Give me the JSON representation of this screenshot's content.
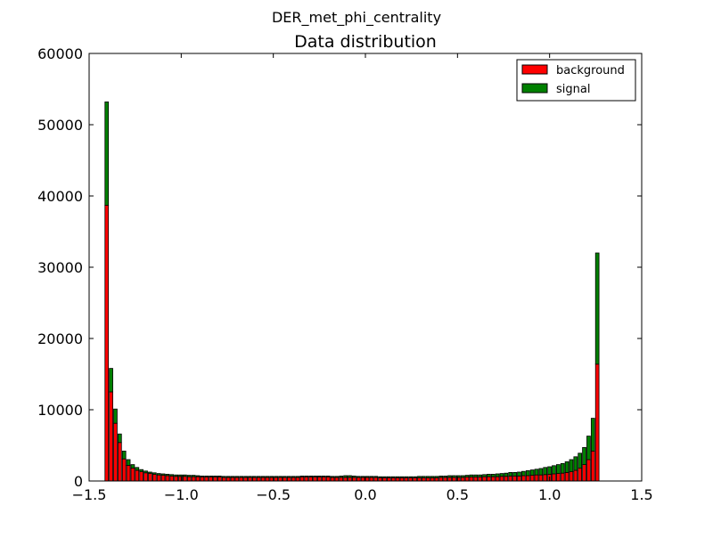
{
  "figure": {
    "suptitle": "DER_met_phi_centrality"
  },
  "chart_data": {
    "type": "bar",
    "stacked": true,
    "title": "Data distribution",
    "xlabel": "",
    "ylabel": "",
    "xlim": [
      -1.5,
      1.5
    ],
    "ylim": [
      0,
      60000
    ],
    "xticks": [
      "−1.5",
      "−1.0",
      "−0.5",
      "0.0",
      "0.5",
      "1.0",
      "1.5"
    ],
    "yticks": [
      "0",
      "10000",
      "20000",
      "30000",
      "40000",
      "50000",
      "60000"
    ],
    "grid": false,
    "legend_placement": "top-right",
    "bin_start": -1.414,
    "bin_width": 0.02357,
    "series": [
      {
        "name": "background",
        "color": "#ff0000",
        "values": [
          38700,
          12500,
          8100,
          5400,
          3100,
          2200,
          1800,
          1500,
          1300,
          1150,
          1050,
          950,
          850,
          800,
          750,
          700,
          650,
          650,
          650,
          600,
          600,
          600,
          550,
          550,
          550,
          550,
          550,
          500,
          500,
          500,
          500,
          500,
          500,
          500,
          500,
          500,
          500,
          500,
          500,
          500,
          500,
          500,
          500,
          500,
          500,
          550,
          550,
          550,
          550,
          550,
          550,
          550,
          500,
          500,
          500,
          500,
          500,
          500,
          500,
          500,
          500,
          500,
          500,
          450,
          450,
          450,
          450,
          450,
          450,
          450,
          450,
          450,
          450,
          450,
          450,
          450,
          450,
          500,
          500,
          500,
          500,
          500,
          500,
          550,
          550,
          550,
          550,
          600,
          600,
          600,
          600,
          650,
          650,
          700,
          700,
          700,
          750,
          750,
          800,
          850,
          850,
          900,
          950,
          1000,
          1050,
          1100,
          1200,
          1300,
          1500,
          1800,
          2300,
          3000,
          4200,
          16400
        ]
      },
      {
        "name": "signal",
        "color": "#008000",
        "values": [
          14500,
          3300,
          2000,
          1200,
          1100,
          800,
          500,
          400,
          300,
          250,
          200,
          200,
          200,
          200,
          200,
          200,
          200,
          200,
          200,
          200,
          200,
          150,
          150,
          150,
          150,
          150,
          150,
          150,
          150,
          150,
          150,
          150,
          150,
          150,
          150,
          150,
          150,
          150,
          150,
          150,
          150,
          150,
          150,
          150,
          150,
          150,
          150,
          150,
          150,
          150,
          150,
          150,
          150,
          150,
          200,
          250,
          250,
          200,
          150,
          150,
          150,
          150,
          150,
          150,
          150,
          150,
          150,
          150,
          150,
          150,
          150,
          150,
          200,
          200,
          200,
          200,
          200,
          200,
          200,
          250,
          250,
          250,
          250,
          250,
          300,
          300,
          300,
          300,
          350,
          350,
          400,
          400,
          450,
          500,
          500,
          550,
          600,
          700,
          750,
          800,
          900,
          1000,
          1050,
          1150,
          1250,
          1350,
          1500,
          1700,
          1900,
          2100,
          2400,
          3300,
          4600,
          15600
        ]
      }
    ]
  }
}
